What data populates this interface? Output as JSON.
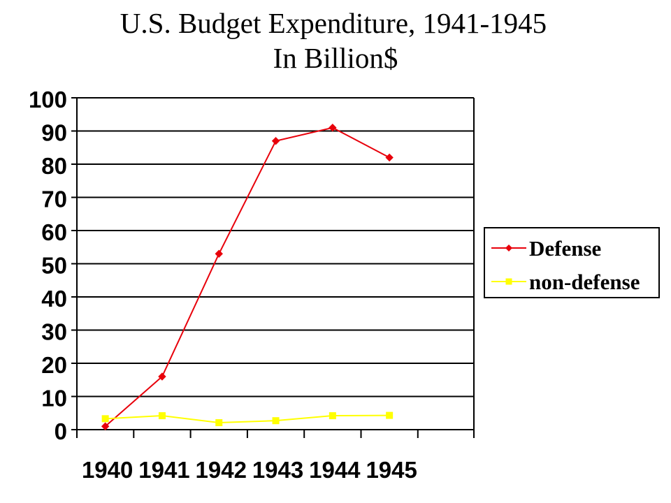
{
  "chart_data": {
    "type": "line",
    "title": "U.S. Budget Expenditure, 1941-1945",
    "subtitle": "In Billion$",
    "xlabel": "",
    "ylabel": "",
    "categories": [
      "1940",
      "1941",
      "1942",
      "1943",
      "1944",
      "1945"
    ],
    "ylim": [
      0,
      100
    ],
    "yticks": [
      "0",
      "10",
      "20",
      "30",
      "40",
      "50",
      "60",
      "70",
      "80",
      "90",
      "100"
    ],
    "grid": "horizontal",
    "legend_position": "right",
    "series": [
      {
        "name": "Defense",
        "values": [
          1,
          16,
          53,
          87,
          91,
          82
        ],
        "color": "#e8000b",
        "marker": "diamond"
      },
      {
        "name": "non-defense",
        "values": [
          3.3,
          4.2,
          2.1,
          2.7,
          4.2,
          4.3
        ],
        "color": "#ffff00",
        "marker": "square"
      }
    ]
  }
}
